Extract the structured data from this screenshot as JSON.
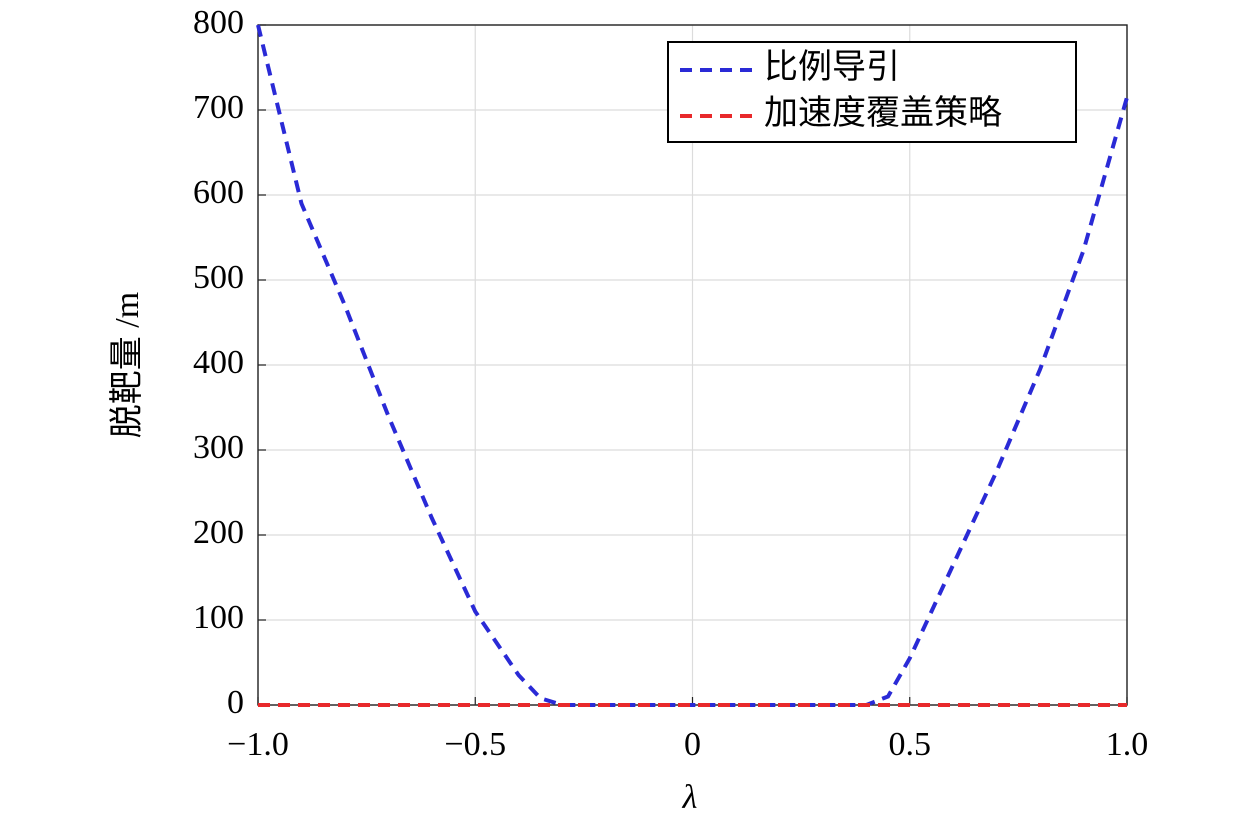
{
  "chart_data": {
    "type": "line",
    "xlabel": "λ",
    "ylabel": "脱靶量 /m",
    "xlim": [
      -1.0,
      1.0
    ],
    "ylim": [
      0,
      800
    ],
    "xticks": [
      {
        "value": -1.0,
        "label": "−1.0"
      },
      {
        "value": -0.5,
        "label": "−0.5"
      },
      0,
      0.5,
      {
        "value": 1.0,
        "label": "1.0"
      }
    ],
    "yticks": [
      0,
      100,
      200,
      300,
      400,
      500,
      600,
      700,
      800
    ],
    "grid": true,
    "legend": "upper right",
    "series": [
      {
        "name": "比例导引",
        "color": "#2a2ad6",
        "x": [
          -1.0,
          -0.9,
          -0.8,
          -0.7,
          -0.6,
          -0.5,
          -0.4,
          -0.35,
          -0.3,
          0,
          0.4,
          0.45,
          0.5,
          0.6,
          0.7,
          0.8,
          0.9,
          1.0
        ],
        "values": [
          800,
          590,
          470,
          340,
          220,
          110,
          35,
          8,
          0,
          0,
          0,
          10,
          55,
          165,
          275,
          395,
          535,
          715
        ]
      },
      {
        "name": "加速度覆盖策略",
        "color": "#e8292b",
        "x": [
          -1.0,
          1.0
        ],
        "values": [
          0,
          0
        ]
      }
    ]
  }
}
